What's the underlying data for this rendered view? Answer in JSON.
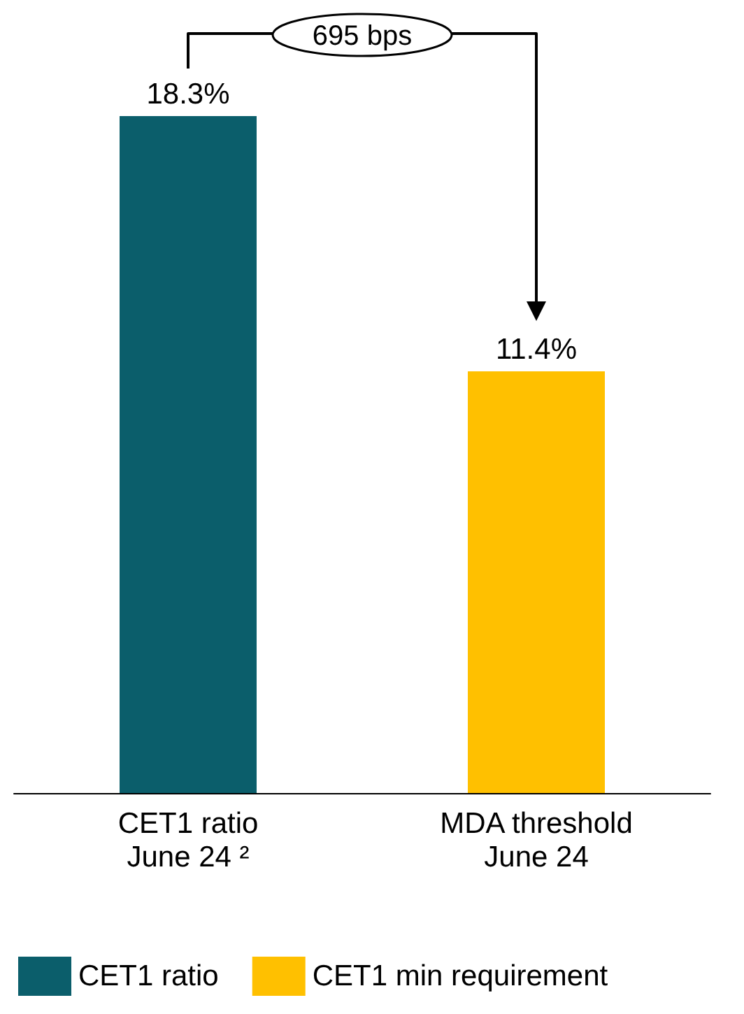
{
  "chart_data": {
    "type": "bar",
    "categories": [
      "CET1 ratio\nJune 24 ²",
      "MDA threshold\nJune 24"
    ],
    "series": [
      {
        "name": "CET1 ratio",
        "color": "#0b5e6b",
        "values": [
          18.3,
          null
        ],
        "value_labels": [
          "18.3%",
          null
        ]
      },
      {
        "name": "CET1 min requirement",
        "color": "#ffc000",
        "values": [
          null,
          11.4
        ],
        "value_labels": [
          null,
          "11.4%"
        ]
      }
    ],
    "legend": "bottom left",
    "annotations": [
      "695 bps"
    ]
  }
}
